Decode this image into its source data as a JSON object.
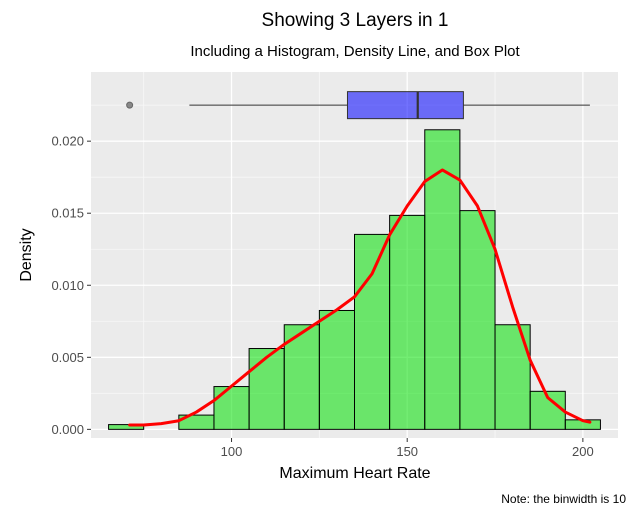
{
  "chart_data": {
    "type": "histogram",
    "title": "Showing 3 Layers in 1",
    "subtitle": "Including a Histogram, Density Line, and Box Plot",
    "xlabel": "Maximum Heart Rate",
    "ylabel": "Density",
    "caption": "Note: the binwidth is 10",
    "xlim": [
      60,
      210
    ],
    "ylim": [
      -0.0006,
      0.0248
    ],
    "x_ticks": [
      100,
      150,
      200
    ],
    "y_ticks": [
      0.0,
      0.005,
      0.01,
      0.015,
      0.02
    ],
    "x_tick_labels": [
      "100",
      "150",
      "200"
    ],
    "y_tick_labels": [
      "0.000",
      "0.005",
      "0.010",
      "0.015",
      "0.020"
    ],
    "grid": true,
    "layers": {
      "histogram": {
        "fill": "#00e000",
        "fill_opacity": 0.55,
        "stroke": "#000000",
        "bins": [
          {
            "x0": 65,
            "x1": 75,
            "density": 0.00033
          },
          {
            "x0": 75,
            "x1": 85,
            "density": 0.0
          },
          {
            "x0": 85,
            "x1": 95,
            "density": 0.00099
          },
          {
            "x0": 95,
            "x1": 105,
            "density": 0.00297
          },
          {
            "x0": 105,
            "x1": 115,
            "density": 0.00561
          },
          {
            "x0": 115,
            "x1": 125,
            "density": 0.00726
          },
          {
            "x0": 125,
            "x1": 135,
            "density": 0.00825
          },
          {
            "x0": 135,
            "x1": 145,
            "density": 0.01353
          },
          {
            "x0": 145,
            "x1": 155,
            "density": 0.01485
          },
          {
            "x0": 155,
            "x1": 165,
            "density": 0.02079
          },
          {
            "x0": 165,
            "x1": 175,
            "density": 0.01518
          },
          {
            "x0": 175,
            "x1": 185,
            "density": 0.00726
          },
          {
            "x0": 185,
            "x1": 195,
            "density": 0.00264
          },
          {
            "x0": 195,
            "x1": 205,
            "density": 0.00066
          }
        ]
      },
      "density_line": {
        "color": "#ff0000",
        "points": [
          [
            71,
            0.0003
          ],
          [
            75,
            0.0003
          ],
          [
            80,
            0.0004
          ],
          [
            85,
            0.0006
          ],
          [
            90,
            0.0012
          ],
          [
            95,
            0.002
          ],
          [
            100,
            0.003
          ],
          [
            105,
            0.004
          ],
          [
            110,
            0.005
          ],
          [
            115,
            0.0059
          ],
          [
            120,
            0.0067
          ],
          [
            125,
            0.0075
          ],
          [
            130,
            0.0083
          ],
          [
            135,
            0.0092
          ],
          [
            140,
            0.0108
          ],
          [
            145,
            0.0135
          ],
          [
            150,
            0.0155
          ],
          [
            155,
            0.0172
          ],
          [
            160,
            0.018
          ],
          [
            165,
            0.0173
          ],
          [
            170,
            0.0155
          ],
          [
            175,
            0.0125
          ],
          [
            180,
            0.0085
          ],
          [
            185,
            0.0048
          ],
          [
            190,
            0.0022
          ],
          [
            195,
            0.0012
          ],
          [
            200,
            0.0006
          ],
          [
            202,
            0.0005
          ]
        ]
      },
      "box_plot": {
        "fill": "#0000ff",
        "fill_opacity": 0.55,
        "y_position": 0.0225,
        "min": 88,
        "q1": 133,
        "median": 153,
        "q3": 166,
        "max": 202,
        "outliers": [
          71
        ]
      }
    }
  }
}
